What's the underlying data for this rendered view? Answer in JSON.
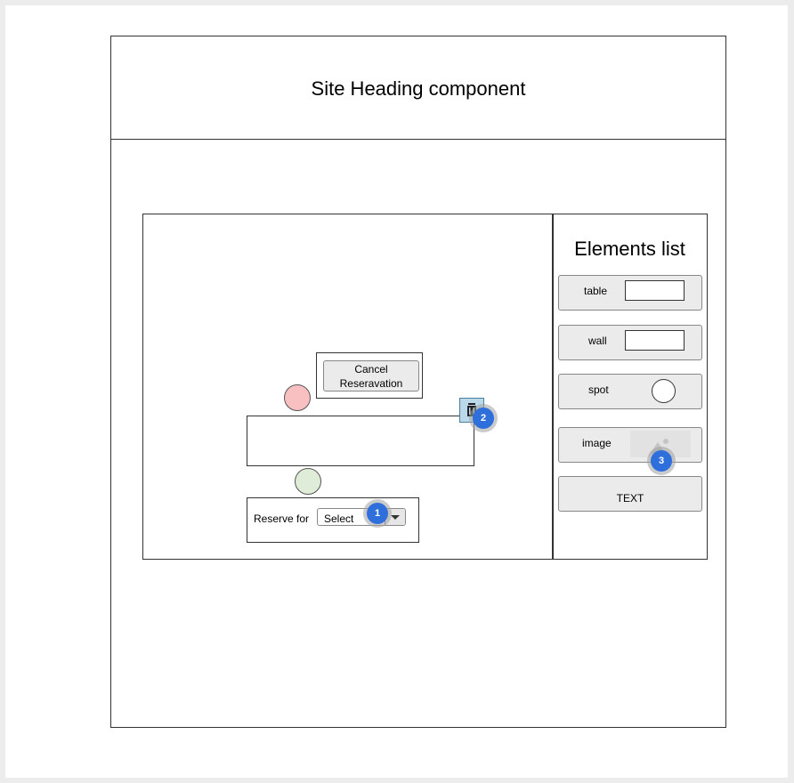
{
  "header": {
    "title": "Site Heading component"
  },
  "elements_panel": {
    "title": "Elements list",
    "items": [
      {
        "label": "table",
        "preview": "rectangle"
      },
      {
        "label": "wall",
        "preview": "rectangle"
      },
      {
        "label": "spot",
        "preview": "circle"
      },
      {
        "label": "image",
        "preview": "image-icon"
      },
      {
        "label": "TEXT"
      }
    ]
  },
  "canvas": {
    "cancel_button_label": "Cancel Reseravation",
    "reserve_label": "Reserve for",
    "reserve_select_value": "Select",
    "spot_colors": {
      "reserved": "#f8c0c0",
      "available": "#dfecd8"
    }
  },
  "annotations": [
    "1",
    "2",
    "3"
  ]
}
